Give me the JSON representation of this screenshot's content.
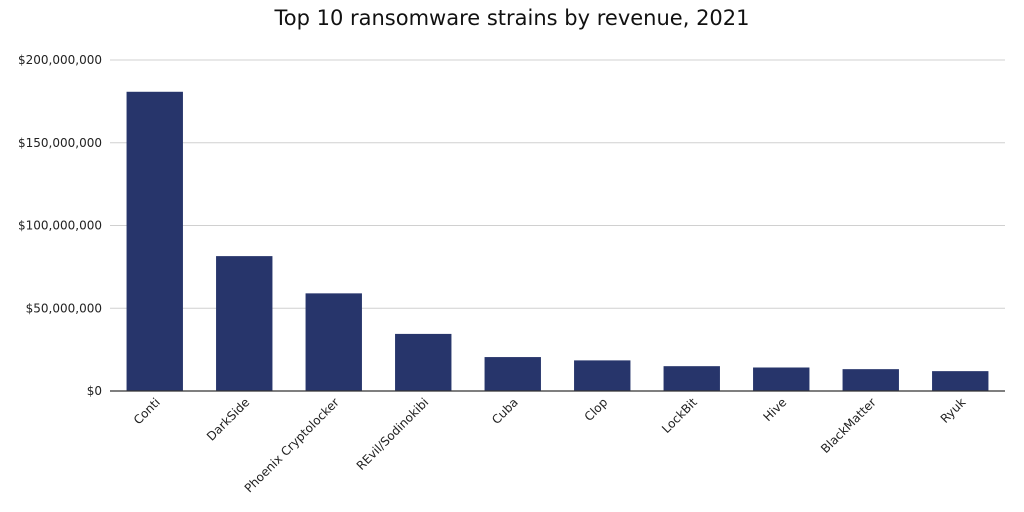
{
  "chart_data": {
    "type": "bar",
    "title": "Top 10 ransomware strains by revenue, 2021",
    "xlabel": "",
    "ylabel": "",
    "categories": [
      "Conti",
      "DarkSide",
      "Phoenix Cryptolocker",
      "REvil/Sodinokibi",
      "Cuba",
      "Clop",
      "LockBit",
      "Hive",
      "BlackMatter",
      "Ryuk"
    ],
    "values": [
      180800000,
      81500000,
      59000000,
      34500000,
      20500000,
      18500000,
      15000000,
      14200000,
      13200000,
      12000000
    ],
    "ylim": [
      0,
      200000000
    ],
    "yticks": [
      0,
      50000000,
      100000000,
      150000000,
      200000000
    ],
    "ytick_labels": [
      "$0",
      "$50,000,000",
      "$100,000,000",
      "$150,000,000",
      "$200,000,000"
    ],
    "grid": true,
    "legend": "none",
    "bar_color": "#27356b",
    "grid_color": "#d0d0d0",
    "axis_color": "#333333"
  }
}
